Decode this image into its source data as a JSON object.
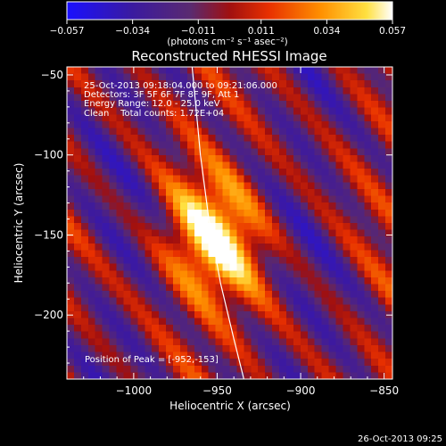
{
  "chart_data": {
    "type": "heatmap",
    "title": "Reconstructed RHESSI Image",
    "xlabel": "Heliocentric X (arcsec)",
    "ylabel": "Heliocentric Y (arcsec)",
    "xlim": [
      -1040,
      -845
    ],
    "ylim": [
      -240,
      -45
    ],
    "x_ticks": [
      {
        "value": -1000,
        "label": "−1000"
      },
      {
        "value": -950,
        "label": "−950"
      },
      {
        "value": -900,
        "label": "−900"
      },
      {
        "value": -850,
        "label": "−850"
      }
    ],
    "y_ticks": [
      {
        "value": -50,
        "label": "−50"
      },
      {
        "value": -100,
        "label": "−100"
      },
      {
        "value": -150,
        "label": "−150"
      },
      {
        "value": -200,
        "label": "−200"
      }
    ],
    "colorbar": {
      "min": -0.057,
      "max": 0.057,
      "tick_values": [
        -0.057,
        -0.034,
        -0.011,
        0.011,
        0.034,
        0.057
      ],
      "tick_labels": [
        "−0.057",
        "−0.034",
        "−0.011",
        "0.011",
        "0.034",
        "0.057"
      ],
      "units_label": "(photons cm⁻² s⁻¹ asec⁻²)",
      "colormap": "blue-purple-red-orange-yellow-white"
    },
    "annotations": [
      "25-Oct-2013 09:18:04.000 to 09:21:06.000",
      "Detectors: 3F 5F 6F 7F 8F 9F, Att 1",
      "Energy Range: 12.0 - 25.0 keV",
      "Clean    Total counts: 1.72E+04"
    ],
    "peak_label": "Position of Peak = [-952,-153]",
    "peak": {
      "x": -952,
      "y": -153
    },
    "limb_line": [
      {
        "x": -965,
        "y": -45
      },
      {
        "x": -960,
        "y": -100
      },
      {
        "x": -955,
        "y": -140
      },
      {
        "x": -948,
        "y": -180
      },
      {
        "x": -940,
        "y": -215
      },
      {
        "x": -934,
        "y": -240
      }
    ]
  },
  "footer": {
    "timestamp": "26-Oct-2013 09:25"
  }
}
